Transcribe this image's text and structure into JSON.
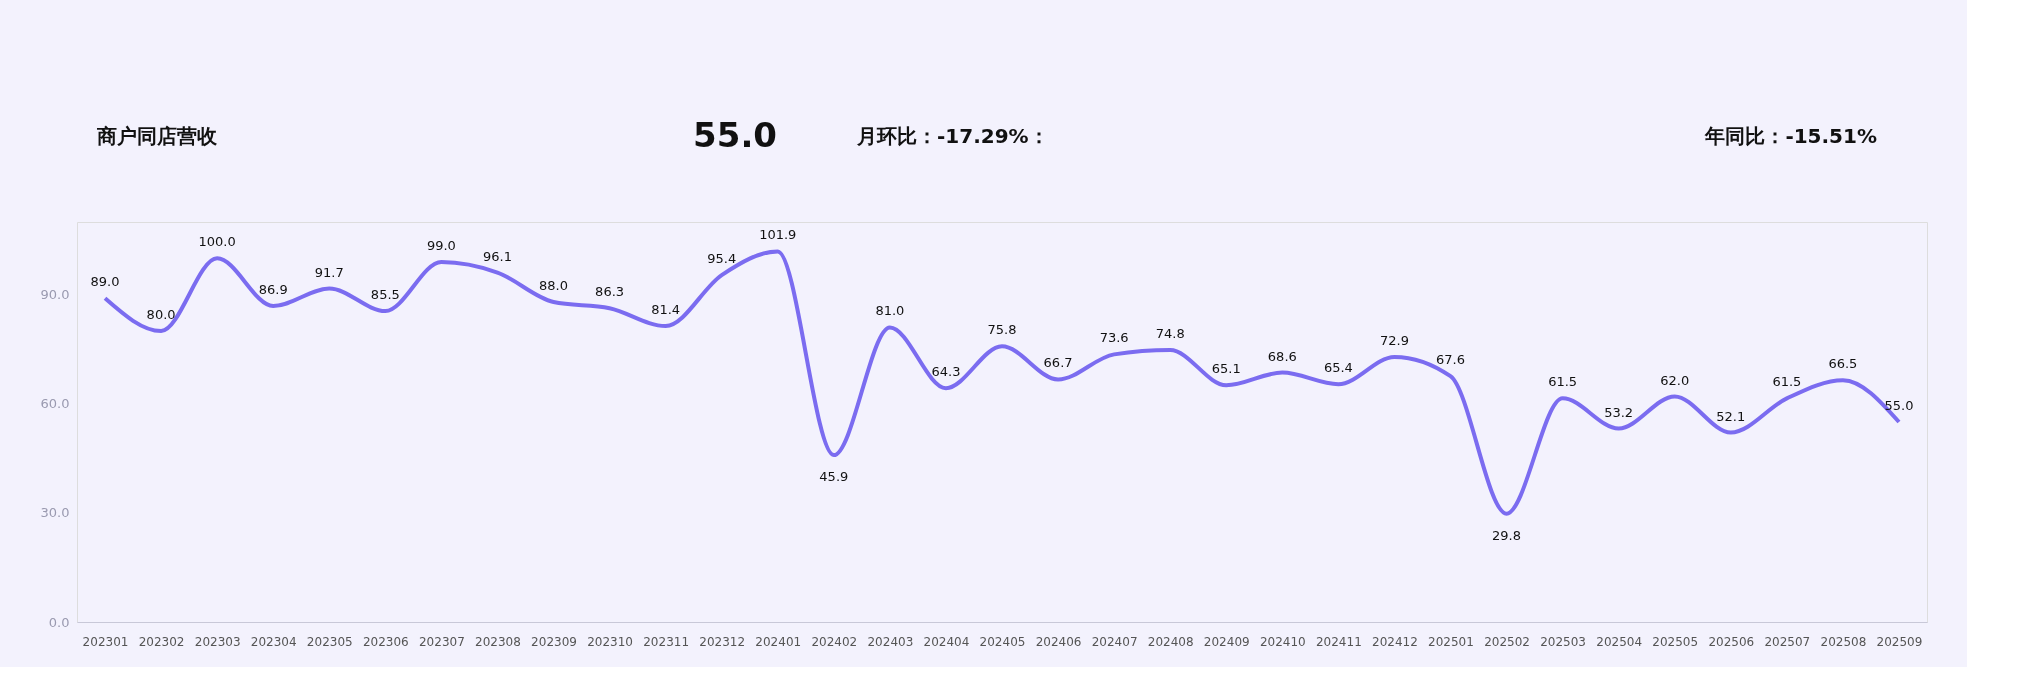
{
  "chart_data": {
    "type": "line",
    "annotations": [
      "商户同店营收",
      "55.0",
      "月环比：-17.29%：",
      "年同比：-15.51%"
    ],
    "categories": [
      "202301",
      "202302",
      "202303",
      "202304",
      "202305",
      "202306",
      "202307",
      "202308",
      "202309",
      "202310",
      "202311",
      "202312",
      "202401",
      "202402",
      "202403",
      "202404",
      "202405",
      "202406",
      "202407",
      "202408",
      "202409",
      "202410",
      "202411",
      "202412",
      "202501",
      "202502",
      "202503",
      "202504",
      "202505",
      "202506",
      "202507",
      "202508",
      "202509"
    ],
    "series": [
      {
        "color": "#7b6cf0",
        "values": [
          89.0,
          80.0,
          100.0,
          86.9,
          91.7,
          85.5,
          99.0,
          96.1,
          88.0,
          86.3,
          81.4,
          95.4,
          101.9,
          45.9,
          81.0,
          64.3,
          75.8,
          66.7,
          73.6,
          74.8,
          65.1,
          68.6,
          65.4,
          72.9,
          67.6,
          29.8,
          61.5,
          53.2,
          62.0,
          52.1,
          61.5,
          66.5,
          55.0
        ],
        "value_labels": [
          "89.0",
          "80.0",
          "100.0",
          "86.9",
          "91.7",
          "85.5",
          "99.0",
          "96.1",
          "88.0",
          "86.3",
          "81.4",
          "95.4",
          "101.9",
          "45.9",
          "81.0",
          "64.3",
          "75.8",
          "66.7",
          "73.6",
          "74.8",
          "65.1",
          "68.6",
          "65.4",
          "72.9",
          "67.6",
          "29.8",
          "61.5",
          "53.2",
          "62.0",
          "52.1",
          "61.5",
          "66.5",
          "55.0"
        ]
      }
    ],
    "ylim": [
      0,
      110
    ],
    "yticks": [
      {
        "value": 0,
        "label": "0.0"
      },
      {
        "value": 30,
        "label": "30.0"
      },
      {
        "value": 60,
        "label": "60.0"
      },
      {
        "value": 90,
        "label": "90.0"
      }
    ],
    "grid": false,
    "marker": "none",
    "line_style": "solid"
  }
}
